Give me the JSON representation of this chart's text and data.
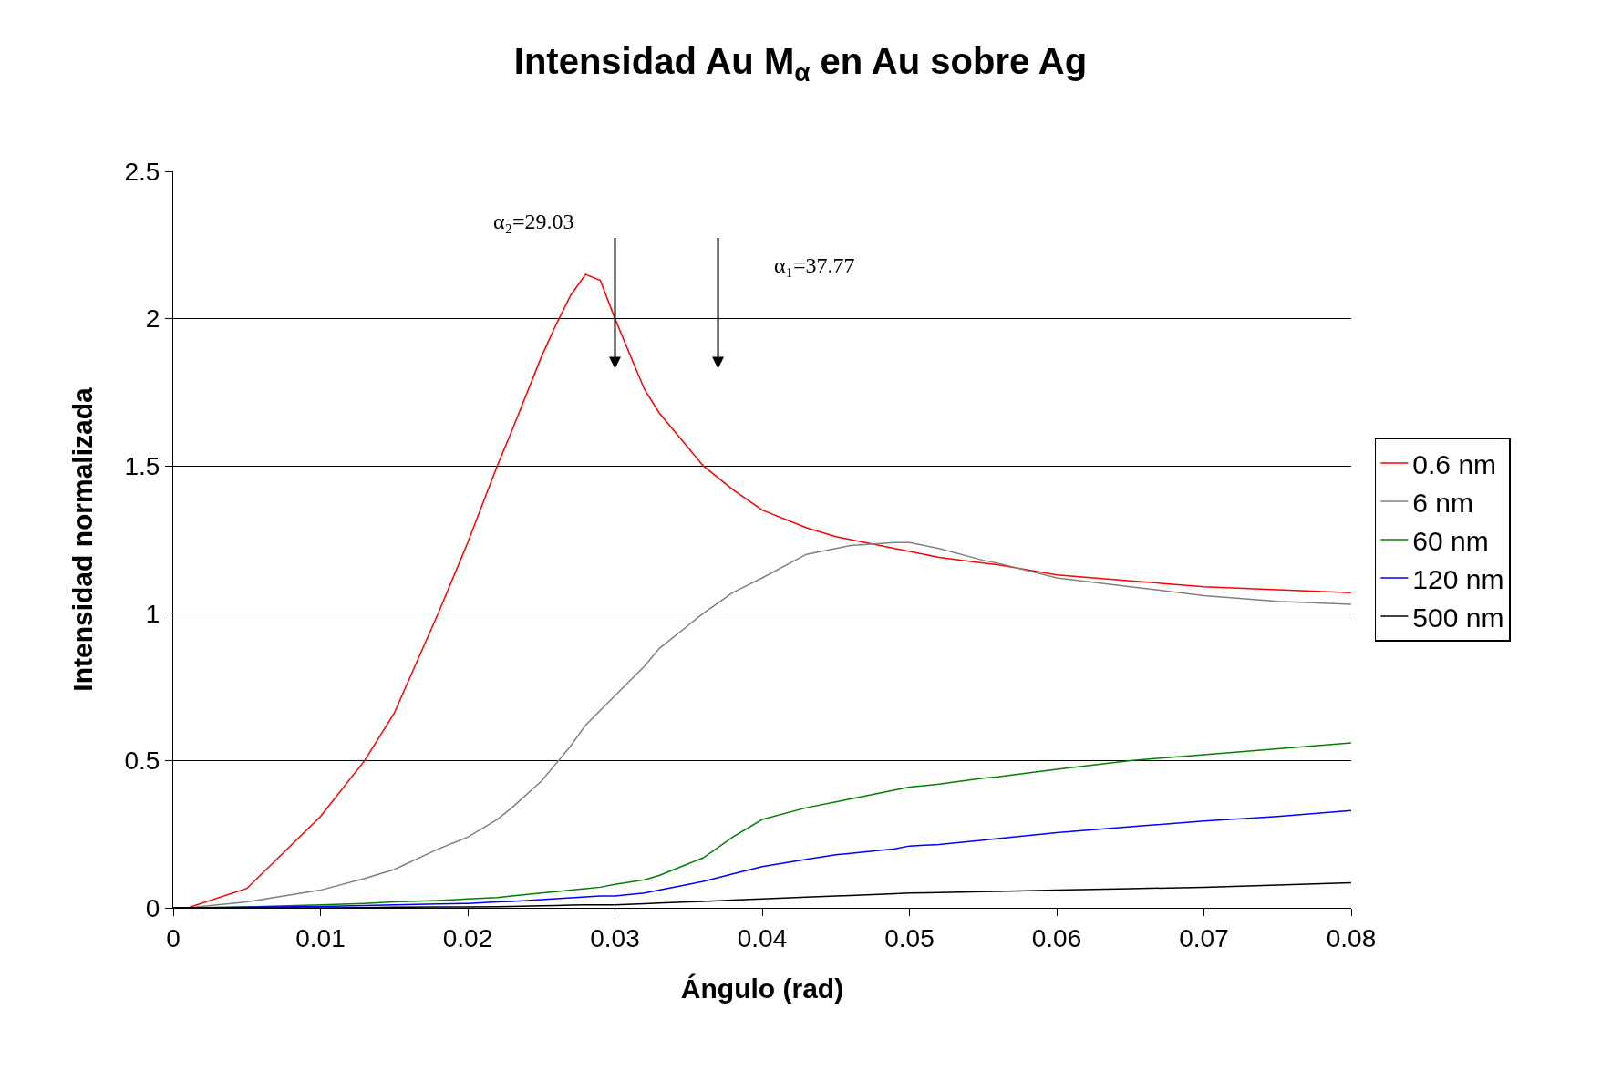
{
  "chart_data": {
    "type": "line",
    "title": "Intensidad Au M$_{α}$ en Au sobre Ag",
    "xlabel": "Ángulo (rad)",
    "ylabel": "Intensidad normalizada",
    "x": [
      0,
      0.001,
      0.005,
      0.01,
      0.013,
      0.015,
      0.018,
      0.02,
      0.022,
      0.023,
      0.025,
      0.026,
      0.027,
      0.028,
      0.029,
      0.03,
      0.032,
      0.033,
      0.035,
      0.036,
      0.038,
      0.04,
      0.043,
      0.045,
      0.046,
      0.049,
      0.05,
      0.052,
      0.055,
      0.056,
      0.06,
      0.065,
      0.07,
      0.075,
      0.08
    ],
    "series": [
      {
        "name": "0.6 nm",
        "color": "#ff0000",
        "values": [
          0,
          0,
          0.066,
          0.31,
          0.5,
          0.66,
          1.0,
          1.24,
          1.5,
          1.62,
          1.87,
          1.98,
          2.08,
          2.15,
          2.13,
          2.0,
          1.76,
          1.68,
          1.56,
          1.5,
          1.42,
          1.35,
          1.29,
          1.26,
          1.25,
          1.22,
          1.21,
          1.19,
          1.17,
          1.165,
          1.13,
          1.11,
          1.09,
          1.08,
          1.07
        ]
      },
      {
        "name": "6 nm",
        "color": "#808080",
        "values": [
          0,
          0,
          0.02,
          0.06,
          0.1,
          0.13,
          0.2,
          0.24,
          0.3,
          0.34,
          0.43,
          0.49,
          0.55,
          0.62,
          0.67,
          0.72,
          0.82,
          0.88,
          0.96,
          1.0,
          1.07,
          1.12,
          1.2,
          1.22,
          1.23,
          1.24,
          1.24,
          1.22,
          1.18,
          1.17,
          1.12,
          1.09,
          1.06,
          1.04,
          1.03
        ]
      },
      {
        "name": "60 nm",
        "color": "#008000",
        "values": [
          0,
          0,
          0.003,
          0.01,
          0.015,
          0.02,
          0.025,
          0.03,
          0.035,
          0.04,
          0.05,
          0.055,
          0.06,
          0.065,
          0.07,
          0.08,
          0.095,
          0.11,
          0.15,
          0.17,
          0.24,
          0.3,
          0.34,
          0.36,
          0.37,
          0.4,
          0.41,
          0.42,
          0.44,
          0.445,
          0.47,
          0.5,
          0.52,
          0.54,
          0.56
        ]
      },
      {
        "name": "120 nm",
        "color": "#0000ff",
        "values": [
          0,
          0,
          0.002,
          0.005,
          0.008,
          0.01,
          0.013,
          0.015,
          0.02,
          0.022,
          0.028,
          0.031,
          0.034,
          0.037,
          0.04,
          0.04,
          0.05,
          0.06,
          0.08,
          0.09,
          0.115,
          0.14,
          0.165,
          0.18,
          0.185,
          0.2,
          0.21,
          0.215,
          0.23,
          0.235,
          0.255,
          0.275,
          0.295,
          0.31,
          0.33
        ]
      },
      {
        "name": "500 nm",
        "color": "#000000",
        "values": [
          0,
          0,
          0,
          0,
          0.001,
          0.002,
          0.003,
          0.003,
          0.004,
          0.005,
          0.007,
          0.008,
          0.009,
          0.01,
          0.01,
          0.01,
          0.014,
          0.016,
          0.02,
          0.022,
          0.026,
          0.03,
          0.036,
          0.04,
          0.042,
          0.048,
          0.05,
          0.052,
          0.055,
          0.056,
          0.06,
          0.065,
          0.07,
          0.077,
          0.085
        ]
      }
    ],
    "annotations": [
      "α₂=29.03",
      "α₁=37.77"
    ],
    "xlim": [
      0,
      0.08
    ],
    "xticks": [
      0,
      0.01,
      0.02,
      0.03,
      0.04,
      0.05,
      0.06,
      0.07,
      0.08
    ],
    "ylim": [
      0,
      2.5
    ],
    "yticks": [
      0,
      0.5,
      1,
      1.5,
      2,
      2.5
    ],
    "grid": "y",
    "legend": "right",
    "marker": "none",
    "line_style": "solid"
  }
}
